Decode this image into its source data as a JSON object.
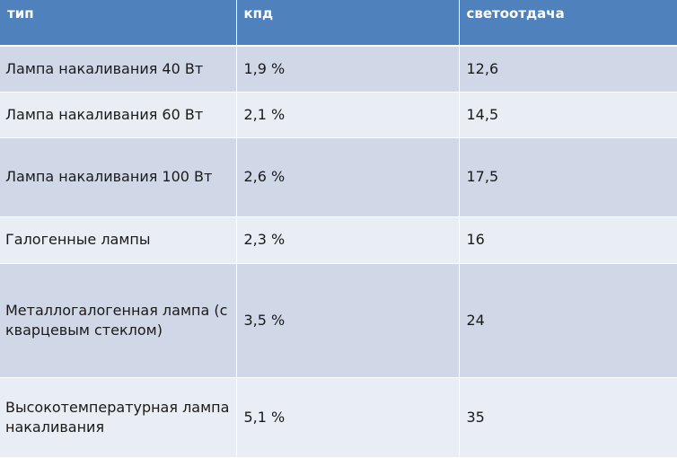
{
  "table": {
    "headers": [
      "тип",
      "кпд",
      "светоотдача"
    ],
    "rows": [
      [
        "Лампа накаливания 40 Вт",
        "1,9 %",
        "12,6"
      ],
      [
        "Лампа накаливания 60 Вт",
        "2,1 %",
        "14,5"
      ],
      [
        "Лампа накаливания 100 Вт",
        "2,6 %",
        "17,5"
      ],
      [
        "Галогенные лампы",
        "2,3 %",
        "16"
      ],
      [
        "Металлогалогенная лампа (с кварцевым стеклом)",
        "3,5 %",
        "24"
      ],
      [
        "Высокотемпературная лампа накаливания",
        "5,1 %",
        "35"
      ]
    ]
  },
  "colors": {
    "header_bg": "#4f81bd",
    "row_odd_bg": "#d0d8e8",
    "row_even_bg": "#e9edf4",
    "text": "#1a1a1a"
  }
}
